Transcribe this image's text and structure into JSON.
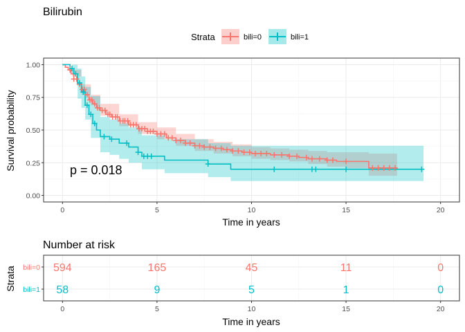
{
  "colors": {
    "bili0": "#F8766D",
    "bili1": "#00BFC4",
    "bili0_fill": "#F8766D",
    "bili1_fill": "#00BFC4",
    "grid_major": "#EBEBEB",
    "grid_minor": "#F5F5F5",
    "panel_border": "#333333",
    "tick_text": "#4D4D4D"
  },
  "legend": {
    "title": "Strata",
    "entries": [
      "bili=0",
      "bili=1"
    ],
    "placement": "top"
  },
  "chart_data": [
    {
      "type": "line",
      "subtype": "kaplan-meier",
      "title": "Bilirubin",
      "xlabel": "Time in years",
      "ylabel": "Survival probability",
      "xlim": [
        -1,
        21
      ],
      "ylim": [
        -0.05,
        1.05
      ],
      "x_ticks": [
        0,
        5,
        10,
        15,
        20
      ],
      "y_ticks": [
        0.0,
        0.25,
        0.5,
        0.75,
        1.0
      ],
      "y_tick_labels": [
        "0.00",
        "0.25",
        "0.50",
        "0.75",
        "1.00"
      ],
      "grid": true,
      "annotation": "p = 0.018",
      "series": [
        {
          "name": "bili=0",
          "steps": [
            [
              0,
              1.0
            ],
            [
              0.15,
              0.98
            ],
            [
              0.3,
              0.96
            ],
            [
              0.45,
              0.93
            ],
            [
              0.6,
              0.89
            ],
            [
              0.8,
              0.85
            ],
            [
              1.0,
              0.81
            ],
            [
              1.2,
              0.77
            ],
            [
              1.4,
              0.73
            ],
            [
              1.6,
              0.7
            ],
            [
              1.8,
              0.67
            ],
            [
              2.0,
              0.65
            ],
            [
              2.3,
              0.62
            ],
            [
              2.6,
              0.6
            ],
            [
              3.0,
              0.57
            ],
            [
              3.5,
              0.54
            ],
            [
              4.0,
              0.51
            ],
            [
              4.5,
              0.49
            ],
            [
              5.0,
              0.47
            ],
            [
              5.5,
              0.44
            ],
            [
              6.0,
              0.42
            ],
            [
              6.5,
              0.4
            ],
            [
              7.0,
              0.38
            ],
            [
              7.5,
              0.37
            ],
            [
              8.0,
              0.36
            ],
            [
              8.5,
              0.35
            ],
            [
              9.0,
              0.34
            ],
            [
              9.5,
              0.33
            ],
            [
              10.0,
              0.32
            ],
            [
              11.0,
              0.31
            ],
            [
              12.0,
              0.3
            ],
            [
              12.5,
              0.29
            ],
            [
              13.0,
              0.28
            ],
            [
              14.0,
              0.27
            ],
            [
              14.5,
              0.26
            ],
            [
              16.2,
              0.21
            ],
            [
              17.7,
              0.21
            ]
          ],
          "ci_upper": [
            [
              0,
              1.0
            ],
            [
              0.5,
              0.96
            ],
            [
              1.0,
              0.85
            ],
            [
              1.5,
              0.77
            ],
            [
              2.0,
              0.7
            ],
            [
              3.0,
              0.62
            ],
            [
              4.0,
              0.56
            ],
            [
              5.0,
              0.52
            ],
            [
              6.0,
              0.47
            ],
            [
              7.0,
              0.43
            ],
            [
              8.0,
              0.41
            ],
            [
              9.0,
              0.39
            ],
            [
              10.0,
              0.37
            ],
            [
              11.0,
              0.36
            ],
            [
              12.0,
              0.35
            ],
            [
              13.0,
              0.34
            ],
            [
              14.0,
              0.33
            ],
            [
              15.0,
              0.33
            ],
            [
              16.2,
              0.32
            ],
            [
              17.7,
              0.32
            ]
          ],
          "ci_lower": [
            [
              0,
              1.0
            ],
            [
              0.5,
              0.91
            ],
            [
              1.0,
              0.77
            ],
            [
              1.5,
              0.69
            ],
            [
              2.0,
              0.61
            ],
            [
              3.0,
              0.53
            ],
            [
              4.0,
              0.47
            ],
            [
              5.0,
              0.43
            ],
            [
              6.0,
              0.38
            ],
            [
              7.0,
              0.34
            ],
            [
              8.0,
              0.32
            ],
            [
              9.0,
              0.3
            ],
            [
              10.0,
              0.28
            ],
            [
              11.0,
              0.27
            ],
            [
              12.0,
              0.26
            ],
            [
              13.0,
              0.24
            ],
            [
              14.0,
              0.22
            ],
            [
              15.0,
              0.21
            ],
            [
              16.2,
              0.15
            ],
            [
              17.7,
              0.15
            ]
          ],
          "censored_x": [
            0.4,
            0.6,
            0.75,
            0.9,
            1.05,
            1.15,
            1.3,
            1.45,
            1.55,
            1.7,
            1.85,
            1.95,
            2.1,
            2.25,
            2.4,
            2.5,
            2.65,
            2.8,
            2.9,
            3.05,
            3.2,
            3.3,
            3.45,
            3.6,
            3.75,
            3.9,
            4.05,
            4.2,
            4.35,
            4.5,
            4.65,
            4.8,
            5.0,
            5.2,
            5.4,
            5.6,
            5.8,
            6.0,
            6.25,
            6.5,
            6.75,
            7.0,
            7.25,
            7.5,
            7.8,
            8.1,
            8.4,
            8.7,
            9.0,
            9.3,
            9.6,
            9.9,
            10.2,
            10.5,
            10.8,
            11.2,
            11.6,
            12.0,
            12.4,
            12.9,
            13.2,
            13.6,
            14.0,
            14.3,
            15.0,
            16.4,
            16.7,
            17.0,
            17.3,
            17.6
          ]
        },
        {
          "name": "bili=1",
          "steps": [
            [
              0,
              1.0
            ],
            [
              0.4,
              0.97
            ],
            [
              0.6,
              0.93
            ],
            [
              0.8,
              0.86
            ],
            [
              1.0,
              0.79
            ],
            [
              1.2,
              0.69
            ],
            [
              1.4,
              0.62
            ],
            [
              1.6,
              0.55
            ],
            [
              1.8,
              0.5
            ],
            [
              2.0,
              0.45
            ],
            [
              2.5,
              0.43
            ],
            [
              3.0,
              0.4
            ],
            [
              3.5,
              0.37
            ],
            [
              4.0,
              0.33
            ],
            [
              4.2,
              0.3
            ],
            [
              5.4,
              0.27
            ],
            [
              7.7,
              0.24
            ],
            [
              8.9,
              0.2
            ],
            [
              19.1,
              0.2
            ]
          ],
          "ci_upper": [
            [
              0,
              1.0
            ],
            [
              0.5,
              1.0
            ],
            [
              0.8,
              0.97
            ],
            [
              1.0,
              0.91
            ],
            [
              1.2,
              0.83
            ],
            [
              1.5,
              0.76
            ],
            [
              2.0,
              0.6
            ],
            [
              2.5,
              0.58
            ],
            [
              3.0,
              0.55
            ],
            [
              3.5,
              0.52
            ],
            [
              4.2,
              0.46
            ],
            [
              5.4,
              0.43
            ],
            [
              7.7,
              0.4
            ],
            [
              8.9,
              0.38
            ],
            [
              19.1,
              0.38
            ]
          ],
          "ci_lower": [
            [
              0,
              1.0
            ],
            [
              0.5,
              0.93
            ],
            [
              0.8,
              0.74
            ],
            [
              1.0,
              0.67
            ],
            [
              1.2,
              0.58
            ],
            [
              1.5,
              0.44
            ],
            [
              2.0,
              0.33
            ],
            [
              2.5,
              0.31
            ],
            [
              3.0,
              0.28
            ],
            [
              3.5,
              0.25
            ],
            [
              4.2,
              0.2
            ],
            [
              5.4,
              0.17
            ],
            [
              7.7,
              0.14
            ],
            [
              8.9,
              0.11
            ],
            [
              19.1,
              0.11
            ]
          ],
          "censored_x": [
            0.5,
            0.7,
            0.9,
            1.1,
            1.3,
            1.5,
            1.7,
            2.2,
            2.6,
            3.4,
            4.0,
            4.3,
            4.5,
            4.7,
            7.7,
            11.2,
            13.2,
            13.4,
            15.0,
            19.0
          ]
        }
      ]
    },
    {
      "type": "table",
      "title": "Number at risk",
      "xlabel": "Time in years",
      "ylabel": "Strata",
      "xlim": [
        -1,
        21
      ],
      "x_ticks": [
        0,
        5,
        10,
        15,
        20
      ],
      "rows": [
        {
          "name": "bili=0",
          "values": [
            594,
            165,
            45,
            11,
            0
          ]
        },
        {
          "name": "bili=1",
          "values": [
            58,
            9,
            5,
            1,
            0
          ]
        }
      ]
    }
  ]
}
